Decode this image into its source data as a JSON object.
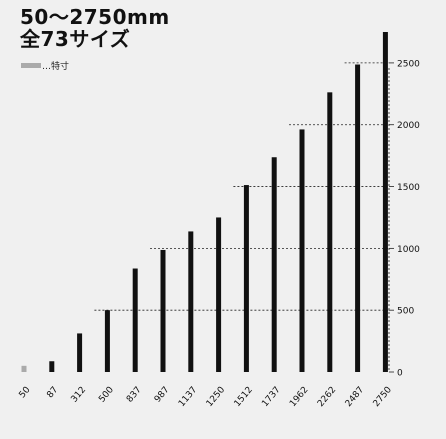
{
  "title": {
    "line1": "50〜2750mm",
    "line2": "全73サイズ"
  },
  "legend": {
    "label": "…特寸",
    "color": "#aaaaaa"
  },
  "colors": {
    "bar": "#111111",
    "special_bar": "#aaaaaa",
    "grid": "#222222",
    "background": "#f0f0f0"
  },
  "chart_data": {
    "type": "bar",
    "title": "50〜2750mm 全73サイズ",
    "xlabel": "",
    "ylabel": "",
    "categories": [
      "50",
      "87",
      "312",
      "500",
      "837",
      "987",
      "1137",
      "1250",
      "1512",
      "1737",
      "1962",
      "2262",
      "2487",
      "2750"
    ],
    "values": [
      50,
      87,
      312,
      500,
      837,
      987,
      1137,
      1250,
      1512,
      1737,
      1962,
      2262,
      2487,
      2750
    ],
    "special": [
      true,
      false,
      false,
      false,
      false,
      false,
      false,
      false,
      false,
      false,
      false,
      false,
      false,
      false
    ],
    "ylim": [
      0,
      2750
    ],
    "yticks": [
      0,
      500,
      1000,
      1500,
      2000,
      2500
    ],
    "ytick_labels": [
      "0",
      "500",
      "1000",
      "1500",
      "2000",
      "2500"
    ],
    "axis_side": "right",
    "reference_lines": [
      {
        "value": 500,
        "from_category": "500"
      },
      {
        "value": 1000,
        "from_category": "987"
      },
      {
        "value": 1500,
        "from_category": "1512"
      },
      {
        "value": 2000,
        "from_category": "1962"
      },
      {
        "value": 2500,
        "from_category": "2487"
      }
    ],
    "grid": false,
    "legend_position": "top-left"
  }
}
